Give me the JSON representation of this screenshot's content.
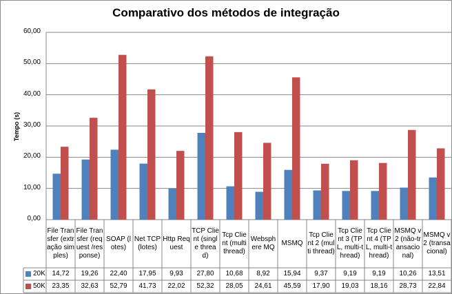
{
  "chart_data": {
    "type": "bar",
    "title": "Comparativo dos métodos de integração",
    "ylabel": "Tempo (s)",
    "xlabel": "",
    "ylim": [
      0,
      60
    ],
    "yticks": [
      "0,00",
      "10,00",
      "20,00",
      "30,00",
      "40,00",
      "50,00",
      "60,00"
    ],
    "grid": true,
    "legend": "bottom-left data table",
    "categories": [
      "File Transfer (extração simples)",
      "File Transfer (request /response)",
      "SOAP (lotes)",
      "Net TCP (lotes)",
      "Http Request",
      "TCP Client (single thread)",
      "Tcp Client (multi thread)",
      "Websphere MQ",
      "MSMQ",
      "Tcp Client 2 (multi thread)",
      "Tcp Client 3 (TPL, multi-thread)",
      "Tcp Client 4 (TPL, multi-thread)",
      "MSMQ v2 (não-transacional)",
      "MSMQ v2 (transacional)"
    ],
    "series": [
      {
        "name": "20K",
        "color": "#4f81bd",
        "values": [
          14.72,
          19.26,
          22.4,
          17.95,
          9.93,
          27.8,
          10.68,
          8.92,
          15.94,
          9.37,
          9.19,
          9.19,
          10.26,
          13.51
        ],
        "labels": [
          "14,72",
          "19,26",
          "22,40",
          "17,95",
          "9,93",
          "27,80",
          "10,68",
          "8,92",
          "15,94",
          "9,37",
          "9,19",
          "9,19",
          "10,26",
          "13,51"
        ]
      },
      {
        "name": "50K",
        "color": "#c0504d",
        "values": [
          23.35,
          32.63,
          52.79,
          41.73,
          22.02,
          52.32,
          28.05,
          24.61,
          45.59,
          17.9,
          19.03,
          18.16,
          28.73,
          22.84
        ],
        "labels": [
          "23,35",
          "32,63",
          "52,79",
          "41,73",
          "22,02",
          "52,32",
          "28,05",
          "24,61",
          "45,59",
          "17,90",
          "19,03",
          "18,16",
          "28,73",
          "22,84"
        ]
      }
    ]
  }
}
